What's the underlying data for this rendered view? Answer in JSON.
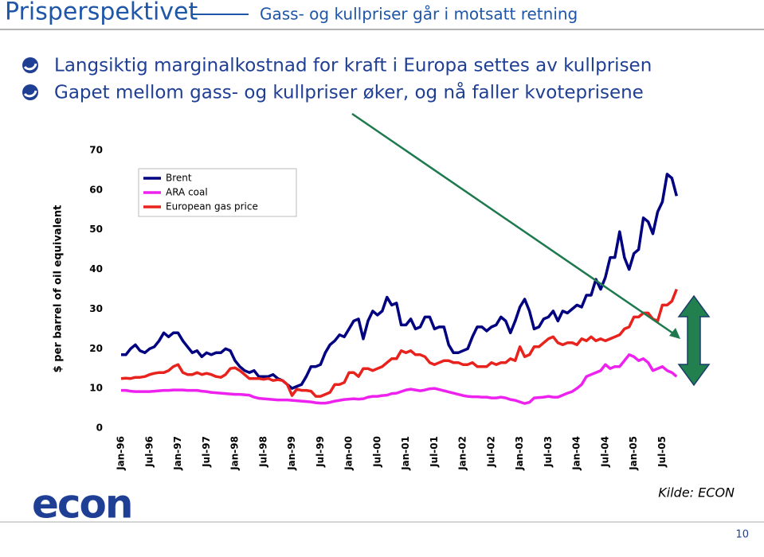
{
  "header": {
    "title": "Prisperspektivet",
    "subtitle": "Gass- og kullpriser går i motsatt retning"
  },
  "bullets": [
    "Langsiktig marginalkostnad for kraft i Europa settes av kullprisen",
    "Gapet mellom gass- og kullpriser øker, og nå faller kvoteprisene"
  ],
  "chart_data": {
    "type": "line",
    "ylabel": "$ per barrel of oil equivalent",
    "categories": [
      "Jan-96",
      null,
      null,
      null,
      null,
      null,
      "Jul-96",
      null,
      null,
      null,
      null,
      null,
      "Jan-97",
      null,
      null,
      null,
      null,
      null,
      "Jul-97",
      null,
      null,
      null,
      null,
      null,
      "Jan-98",
      null,
      null,
      null,
      null,
      null,
      "Jul-98",
      null,
      null,
      null,
      null,
      null,
      "Jan-99",
      null,
      null,
      null,
      null,
      null,
      "Jul-99",
      null,
      null,
      null,
      null,
      null,
      "Jan-00",
      null,
      null,
      null,
      null,
      null,
      "Jul-00",
      null,
      null,
      null,
      null,
      null,
      "Jan-01",
      null,
      null,
      null,
      null,
      null,
      "Jul-01",
      null,
      null,
      null,
      null,
      null,
      "Jan-02",
      null,
      null,
      null,
      null,
      null,
      "Jul-02",
      null,
      null,
      null,
      null,
      null,
      "Jan-03",
      null,
      null,
      null,
      null,
      null,
      "Jul-03",
      null,
      null,
      null,
      null,
      null,
      "Jan-04",
      null,
      null,
      null,
      null,
      null,
      "Jul-04",
      null,
      null,
      null,
      null,
      null,
      "Jan-05",
      null,
      null,
      null,
      null,
      null,
      "Jul-05",
      null,
      null,
      null
    ],
    "series": [
      {
        "name": "Brent",
        "color": "#000080",
        "values": [
          18.5,
          18.5,
          20,
          21,
          19.5,
          19,
          20,
          20.5,
          22,
          24,
          23,
          24,
          24,
          22,
          20.5,
          19,
          19.5,
          18,
          19,
          18.5,
          19,
          19,
          20,
          19.5,
          17,
          15.5,
          14.5,
          14,
          14.5,
          13,
          13,
          13,
          13.5,
          12.5,
          12,
          11,
          10,
          10.5,
          11,
          13,
          15.5,
          15.5,
          16,
          19,
          21,
          22,
          23.5,
          23,
          25,
          27,
          27.5,
          22.5,
          27,
          29.5,
          28.5,
          29.5,
          33,
          31,
          31.5,
          26,
          26,
          27.5,
          25,
          25.5,
          28,
          28,
          25,
          25.5,
          25.5,
          21,
          19,
          19,
          19.5,
          20,
          23,
          25.5,
          25.5,
          24.5,
          25.5,
          26,
          28,
          27,
          24,
          27,
          30.5,
          32.5,
          29.5,
          25,
          25.5,
          27.5,
          28,
          29.5,
          27,
          29.5,
          29,
          30,
          31,
          30.5,
          33.5,
          33.5,
          37.5,
          35,
          38,
          43,
          43,
          49.5,
          43,
          40,
          44,
          45,
          53,
          52,
          49,
          54.5,
          57,
          64,
          63,
          58.5
        ]
      },
      {
        "name": "ARA coal",
        "color": "#ee22ee",
        "values": [
          9.5,
          9.5,
          9.3,
          9.2,
          9.2,
          9.2,
          9.2,
          9.3,
          9.4,
          9.5,
          9.5,
          9.6,
          9.6,
          9.6,
          9.5,
          9.5,
          9.5,
          9.3,
          9.2,
          9.0,
          8.9,
          8.8,
          8.7,
          8.6,
          8.5,
          8.5,
          8.4,
          8.3,
          7.8,
          7.5,
          7.4,
          7.3,
          7.2,
          7.1,
          7.1,
          7.1,
          7.0,
          6.9,
          6.8,
          6.7,
          6.6,
          6.4,
          6.3,
          6.3,
          6.5,
          6.8,
          7.0,
          7.2,
          7.3,
          7.4,
          7.3,
          7.4,
          7.8,
          8.0,
          8.0,
          8.2,
          8.3,
          8.7,
          8.8,
          9.2,
          9.6,
          9.8,
          9.6,
          9.4,
          9.6,
          9.9,
          10.0,
          9.7,
          9.4,
          9.1,
          8.8,
          8.5,
          8.2,
          8.0,
          7.9,
          7.9,
          7.8,
          7.8,
          7.6,
          7.6,
          7.8,
          7.6,
          7.2,
          7.0,
          6.6,
          6.2,
          6.5,
          7.6,
          7.7,
          7.8,
          8.0,
          7.8,
          7.8,
          8.3,
          8.8,
          9.2,
          10.0,
          11.0,
          13.0,
          13.5,
          14.0,
          14.5,
          16.0,
          15.0,
          15.5,
          15.5,
          17.0,
          18.5,
          18.0,
          17.0,
          17.5,
          16.5,
          14.5,
          15.0,
          15.5,
          14.5,
          14.0,
          13.0
        ]
      },
      {
        "name": "European gas price",
        "color": "#e8221c",
        "values": [
          12.5,
          12.6,
          12.5,
          12.8,
          12.8,
          13.0,
          13.5,
          13.8,
          14.0,
          14.0,
          14.5,
          15.5,
          16.0,
          14.0,
          13.5,
          13.5,
          14.0,
          13.5,
          13.8,
          13.5,
          13.0,
          12.8,
          13.5,
          15.0,
          15.2,
          14.5,
          13.5,
          12.5,
          12.5,
          12.5,
          12.3,
          12.5,
          12.0,
          12.2,
          12.0,
          11.0,
          8.2,
          9.8,
          9.5,
          9.5,
          9.3,
          8.0,
          8.0,
          8.5,
          9.0,
          11.0,
          11.0,
          11.5,
          14.0,
          14.0,
          13.0,
          15.0,
          15.0,
          14.5,
          15.0,
          15.5,
          16.5,
          17.5,
          17.5,
          19.5,
          19.0,
          19.5,
          18.5,
          18.5,
          18.0,
          16.5,
          16.0,
          16.5,
          17.0,
          17.0,
          16.5,
          16.5,
          16.0,
          16.0,
          16.5,
          15.5,
          15.5,
          15.5,
          16.5,
          16.0,
          16.5,
          16.5,
          17.5,
          17.0,
          20.5,
          18.0,
          18.5,
          20.5,
          20.5,
          21.5,
          22.5,
          23.0,
          21.5,
          21.0,
          21.5,
          21.5,
          21.0,
          22.5,
          22.0,
          23.0,
          22.0,
          22.5,
          22.0,
          22.5,
          23.0,
          23.5,
          25.0,
          25.5,
          28.0,
          28.0,
          29.0,
          29.0,
          27.5,
          27.0,
          31.0,
          31.0,
          32.0,
          35.0
        ]
      }
    ],
    "ylim": [
      0,
      70
    ],
    "yticks": [
      0,
      10,
      20,
      30,
      40,
      50,
      60,
      70
    ],
    "grid": false,
    "legend": "upper left"
  },
  "footer": {
    "logo": "econ",
    "source": "Kilde: ECON",
    "page_number": 10
  }
}
